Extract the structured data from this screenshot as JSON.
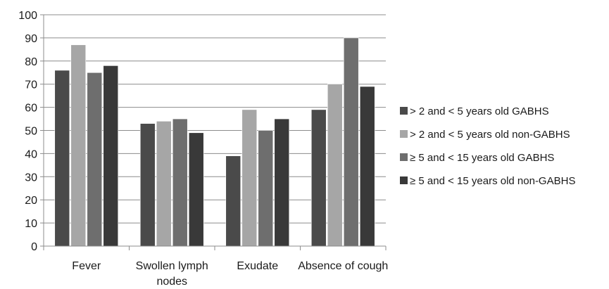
{
  "chart_data": {
    "type": "bar",
    "title": "",
    "xlabel": "",
    "ylabel": "",
    "ylim": [
      0,
      100
    ],
    "yticks": [
      0,
      10,
      20,
      30,
      40,
      50,
      60,
      70,
      80,
      90,
      100
    ],
    "grid": true,
    "legend_position": "right",
    "categories": [
      "Fever",
      "Swollen lymph nodes",
      "Exudate",
      "Absence of cough"
    ],
    "series": [
      {
        "name": "> 2 and < 5 years old GABHS",
        "color": "#4a4a4a",
        "values": [
          76,
          53,
          39,
          59
        ]
      },
      {
        "name": "> 2 and < 5 years old non-GABHS",
        "color": "#a6a6a6",
        "values": [
          87,
          54,
          59,
          70
        ]
      },
      {
        "name": "≥ 5 and < 15 years old GABHS",
        "color": "#6e6e6e",
        "values": [
          75,
          55,
          50,
          90
        ]
      },
      {
        "name": "≥ 5 and < 15 years old non-GABHS",
        "color": "#393939",
        "values": [
          78,
          49,
          55,
          69
        ]
      }
    ]
  }
}
